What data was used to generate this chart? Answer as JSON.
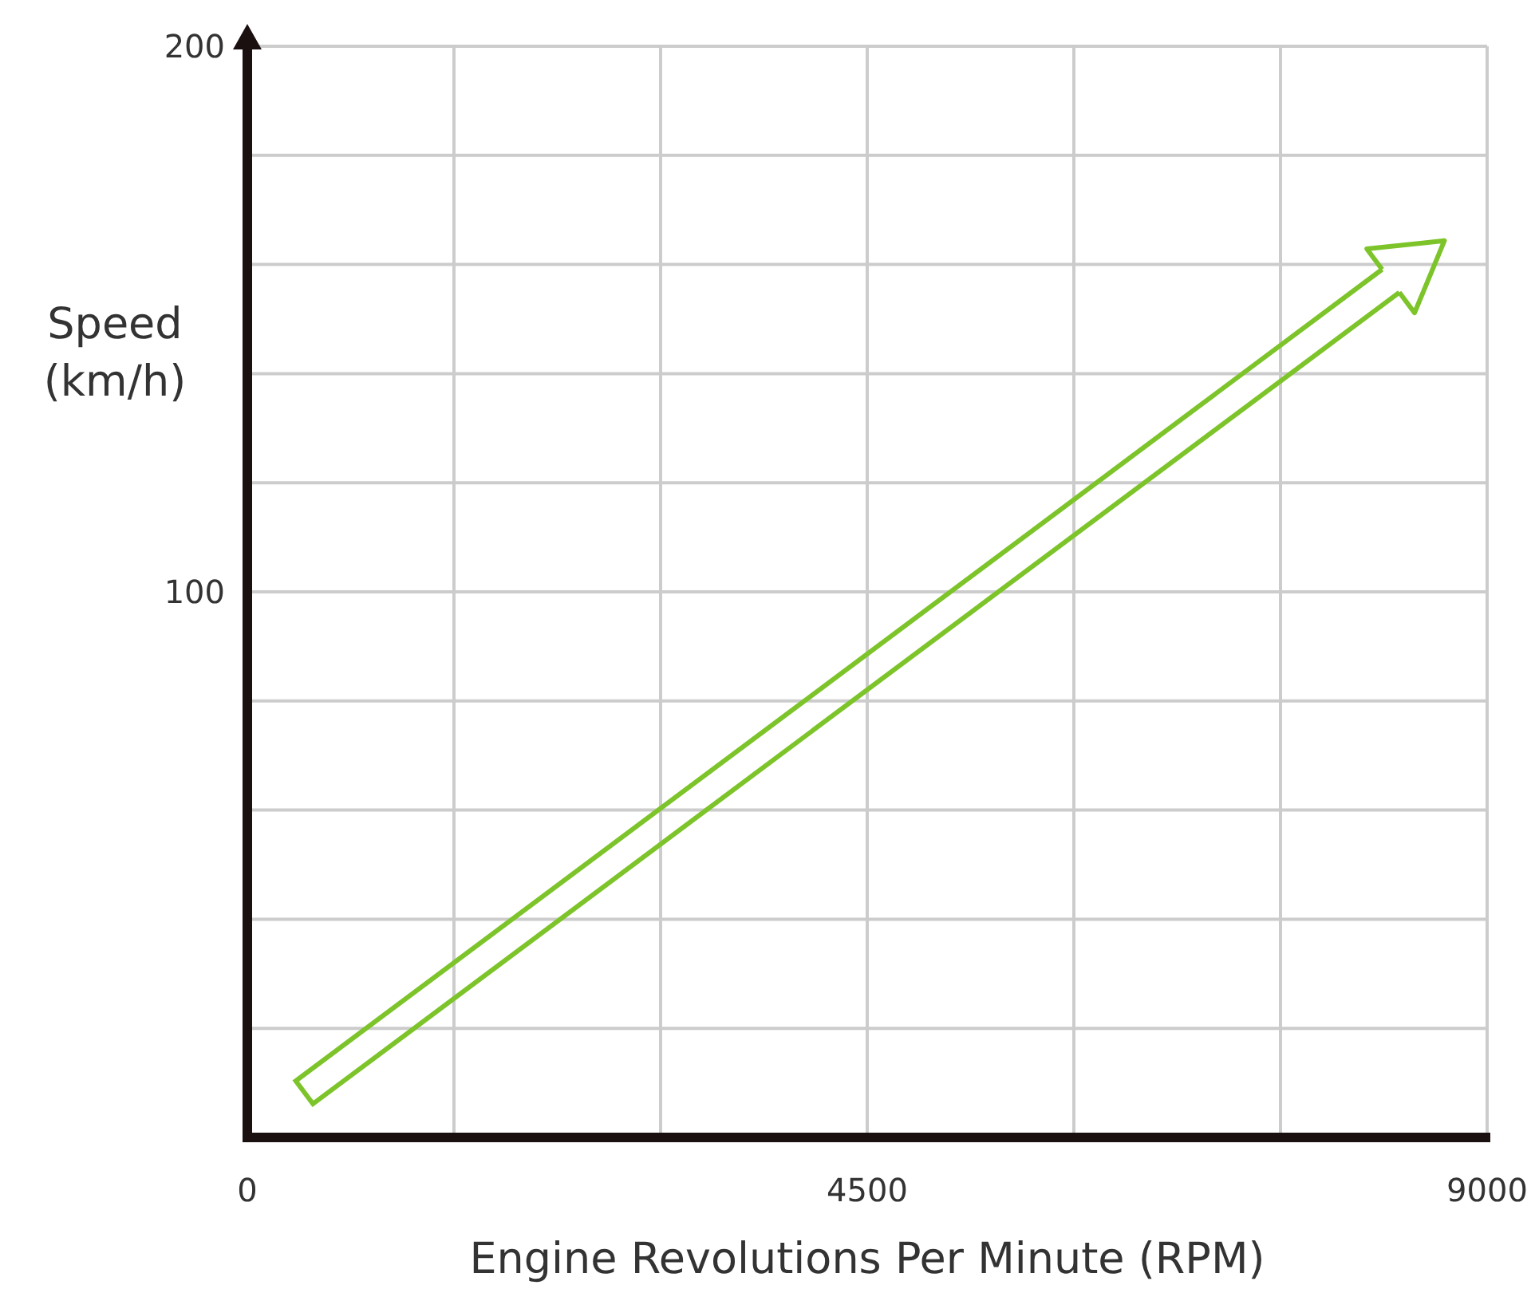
{
  "chart_data": {
    "type": "line",
    "xlabel": "Engine Revolutions Per Minute (RPM)",
    "ylabel": "Speed\n(km/h)",
    "xlim": [
      0,
      9000
    ],
    "ylim": [
      0,
      200
    ],
    "xticks": [
      0,
      {
        "value": 1500,
        "label": null
      },
      {
        "value": 3000,
        "label": null
      },
      4500,
      {
        "value": 6000,
        "label": null
      },
      {
        "value": 7500,
        "label": null
      },
      9000
    ],
    "yticks": [
      {
        "value": 20,
        "label": null
      },
      {
        "value": 40,
        "label": null
      },
      {
        "value": 60,
        "label": null
      },
      {
        "value": 80,
        "label": null
      },
      100,
      {
        "value": 120,
        "label": null
      },
      {
        "value": 140,
        "label": null
      },
      {
        "value": 160,
        "label": null
      },
      {
        "value": 180,
        "label": null
      },
      200
    ],
    "grid": true,
    "series": [
      {
        "color": "#7dc42a",
        "x": [
          400,
          8300
        ],
        "values": [
          8,
          157
        ]
      }
    ]
  }
}
